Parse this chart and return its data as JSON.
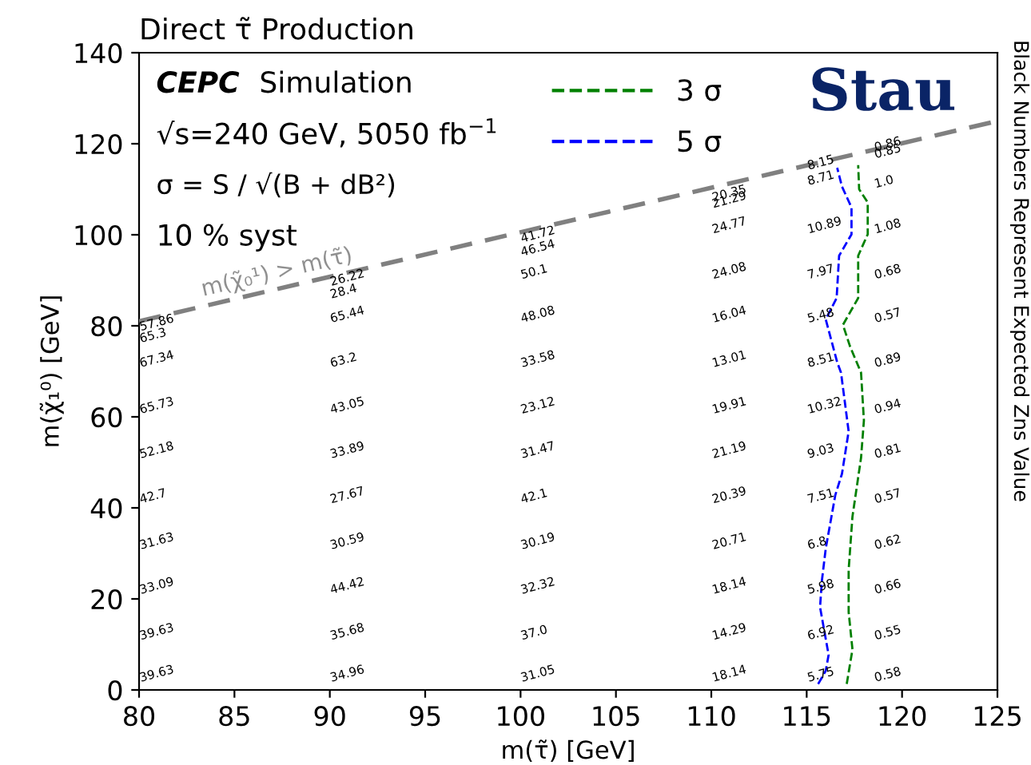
{
  "chart_data": {
    "type": "line",
    "title": "Direct τ̃ Production",
    "xlabel": "m(τ̃) [GeV]",
    "ylabel": "m(χ̃₁⁰) [GeV]",
    "y2label": "Black Numbers Represent Expected Zns Value",
    "xlim": [
      80,
      125
    ],
    "xticks": [
      80,
      85,
      90,
      95,
      100,
      105,
      110,
      115,
      120,
      125
    ],
    "ylim": [
      0,
      140
    ],
    "yticks": [
      0,
      20,
      40,
      60,
      80,
      100,
      120,
      140
    ],
    "grid": false,
    "legend": "top",
    "marker": "none",
    "line_style": "dashed",
    "series": [
      {
        "name": "3 σ",
        "color": "#008000",
        "x": [
          117.1,
          117.4,
          117.2,
          117.2,
          117.4,
          117.85,
          118.0,
          117.85,
          117.27,
          116.9,
          117.7,
          117.7,
          118.2,
          118.2,
          117.75,
          117.7
        ],
        "values": [
          1.3,
          8.9,
          17.1,
          26.4,
          38.1,
          51.0,
          59.2,
          69.7,
          75.5,
          80.2,
          86.1,
          95.4,
          100.1,
          107.1,
          110.0,
          115.3
        ]
      },
      {
        "name": "5 σ",
        "color": "#0000ff",
        "x": [
          115.6,
          116.0,
          116.15,
          115.7,
          115.8,
          116.0,
          116.3,
          116.5,
          116.85,
          117.2,
          116.8,
          116.6,
          116.0,
          116.57,
          116.7,
          117.35,
          117.35,
          116.85,
          116.6
        ],
        "values": [
          1.3,
          4.2,
          7.7,
          18.2,
          24.1,
          31.1,
          38.1,
          42.8,
          47.5,
          56.8,
          69.7,
          72.0,
          81.4,
          86.1,
          95.4,
          100.1,
          106.0,
          110.6,
          114.7
        ]
      },
      {
        "type": "line",
        "color": "#808080",
        "x": [
          80,
          125
        ],
        "values": [
          81,
          125
        ]
      }
    ],
    "annotations": [
      "CEPC",
      "Simulation",
      "√s=240 GeV, 5050 fb$^{−1}$",
      "σ = S / √(B + dB²)",
      "10 % syst",
      "Stau",
      "m(χ̃₀¹) > m(τ̃)",
      "39.63",
      "39.63",
      "33.09",
      "31.63",
      "42.7",
      "52.18",
      "65.73",
      "67.34",
      "65.3",
      "57.86",
      "34.96",
      "35.68",
      "44.42",
      "30.59",
      "27.67",
      "33.89",
      "43.05",
      "63.2",
      "65.44",
      "28.4",
      "26.22",
      "31.05",
      "37.0",
      "32.32",
      "30.19",
      "42.1",
      "31.47",
      "23.12",
      "33.58",
      "48.08",
      "50.1",
      "46.54",
      "41.72",
      "18.14",
      "14.29",
      "18.14",
      "20.71",
      "20.39",
      "21.19",
      "19.91",
      "13.01",
      "16.04",
      "24.08",
      "24.77",
      "21.29",
      "20.35",
      "5.75",
      "6.92",
      "5.98",
      "6.8",
      "7.51",
      "9.03",
      "10.32",
      "8.51",
      "5.48",
      "7.97",
      "10.89",
      "8.71",
      "8.15",
      "0.58",
      "0.55",
      "0.66",
      "0.62",
      "0.57",
      "0.81",
      "0.94",
      "0.89",
      "0.57",
      "0.68",
      "1.08",
      "1.0",
      "0.85",
      "0.86"
    ]
  }
}
